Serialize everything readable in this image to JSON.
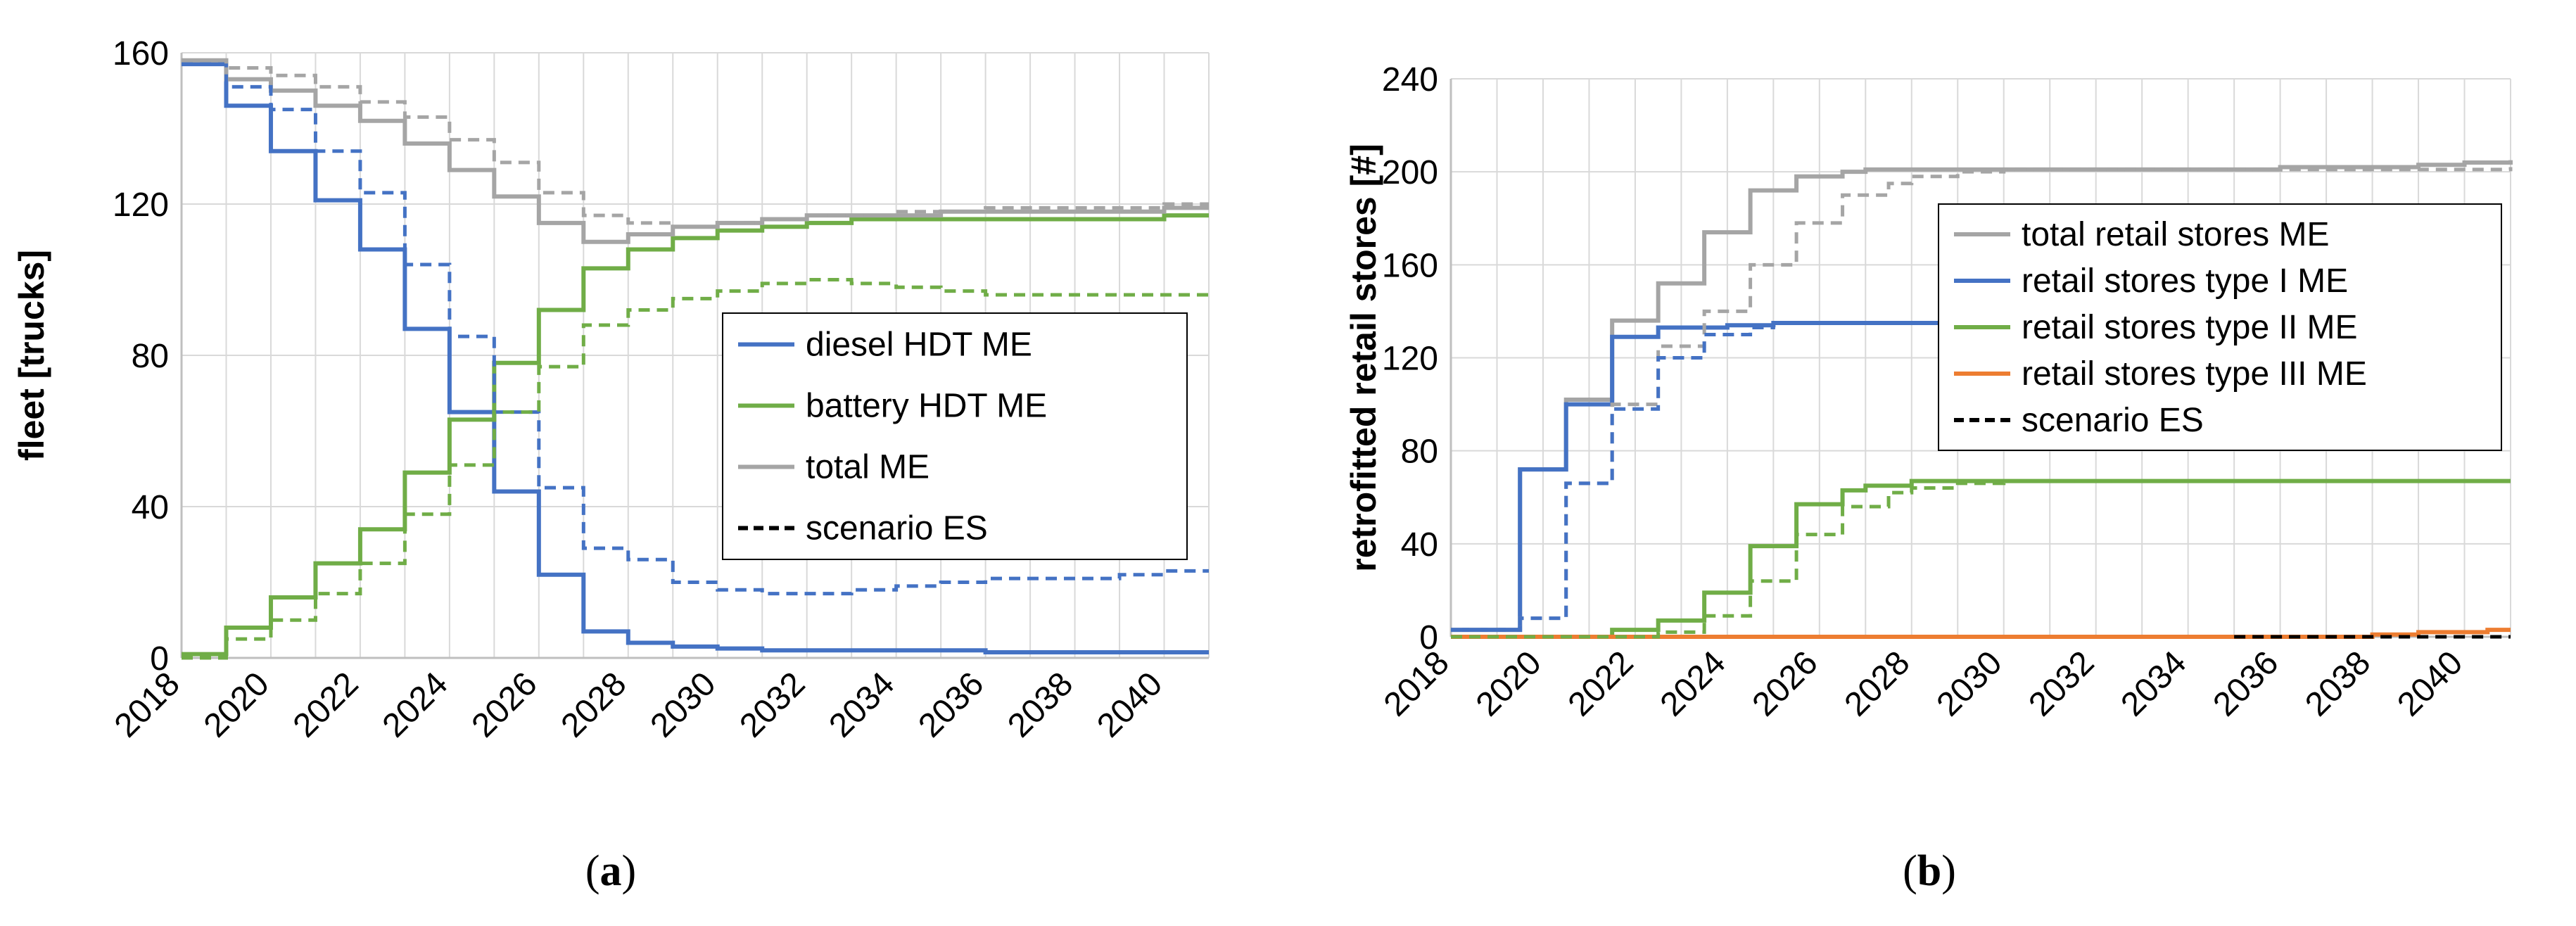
{
  "chart_data": [
    {
      "type": "line",
      "step": true,
      "caption": "a",
      "ylabel": "fleet [trucks]",
      "xlabel": "",
      "xlim": [
        2018,
        2041
      ],
      "ylim": [
        0,
        160
      ],
      "yticks": [
        0,
        40,
        80,
        120,
        160
      ],
      "xticks": [
        2018,
        2020,
        2022,
        2024,
        2026,
        2028,
        2030,
        2032,
        2034,
        2036,
        2038,
        2040
      ],
      "grid": true,
      "legend_position": "center-right",
      "legend": [
        {
          "label": "diesel HDT ME",
          "color": "#4472C4",
          "dash": false
        },
        {
          "label": "battery HDT ME",
          "color": "#70AD47",
          "dash": false
        },
        {
          "label": "total ME",
          "color": "#A5A5A5",
          "dash": false
        },
        {
          "label": "scenario ES",
          "color": "#000000",
          "dash": true
        }
      ],
      "series": [
        {
          "key": "diesel_me",
          "color": "#4472C4",
          "dash": false,
          "x": [
            2018,
            2019,
            2020,
            2021,
            2022,
            2023,
            2024,
            2025,
            2026,
            2027,
            2028,
            2029,
            2030,
            2031,
            2032,
            2033,
            2034,
            2035,
            2036,
            2037,
            2038,
            2039,
            2040,
            2041
          ],
          "y": [
            157,
            146,
            134,
            121,
            108,
            87,
            65,
            44,
            22,
            7,
            4,
            3,
            2.5,
            2,
            2,
            2,
            2,
            2,
            1.5,
            1.5,
            1.5,
            1.5,
            1.5,
            1.5
          ]
        },
        {
          "key": "battery_me",
          "color": "#70AD47",
          "dash": false,
          "x": [
            2018,
            2019,
            2020,
            2021,
            2022,
            2023,
            2024,
            2025,
            2026,
            2027,
            2028,
            2029,
            2030,
            2031,
            2032,
            2033,
            2034,
            2035,
            2036,
            2037,
            2038,
            2039,
            2040,
            2041
          ],
          "y": [
            1,
            8,
            16,
            25,
            34,
            49,
            63,
            78,
            92,
            103,
            108,
            111,
            113,
            114,
            115,
            116,
            116,
            116,
            116,
            116,
            116,
            116,
            117,
            117
          ]
        },
        {
          "key": "total_me",
          "color": "#A5A5A5",
          "dash": false,
          "x": [
            2018,
            2019,
            2020,
            2021,
            2022,
            2023,
            2024,
            2025,
            2026,
            2027,
            2028,
            2029,
            2030,
            2031,
            2032,
            2033,
            2034,
            2035,
            2036,
            2037,
            2038,
            2039,
            2040,
            2041
          ],
          "y": [
            158,
            153,
            150,
            146,
            142,
            136,
            129,
            122,
            115,
            110,
            112,
            114,
            115,
            116,
            117,
            117,
            117,
            118,
            118,
            118,
            118,
            118,
            119,
            119
          ]
        },
        {
          "key": "diesel_es",
          "color": "#4472C4",
          "dash": true,
          "x": [
            2018,
            2019,
            2020,
            2021,
            2022,
            2023,
            2024,
            2025,
            2026,
            2027,
            2028,
            2029,
            2030,
            2031,
            2032,
            2033,
            2034,
            2035,
            2036,
            2037,
            2038,
            2039,
            2040,
            2041
          ],
          "y": [
            157,
            151,
            145,
            134,
            123,
            104,
            85,
            65,
            45,
            29,
            26,
            20,
            18,
            17,
            17,
            18,
            19,
            20,
            21,
            21,
            21,
            22,
            23,
            23
          ]
        },
        {
          "key": "battery_es",
          "color": "#70AD47",
          "dash": true,
          "x": [
            2018,
            2019,
            2020,
            2021,
            2022,
            2023,
            2024,
            2025,
            2026,
            2027,
            2028,
            2029,
            2030,
            2031,
            2032,
            2033,
            2034,
            2035,
            2036,
            2037,
            2038,
            2039,
            2040,
            2041
          ],
          "y": [
            0,
            5,
            10,
            17,
            25,
            38,
            51,
            65,
            77,
            88,
            92,
            95,
            97,
            99,
            100,
            99,
            98,
            97,
            96,
            96,
            96,
            96,
            96,
            96
          ]
        },
        {
          "key": "total_es",
          "color": "#A5A5A5",
          "dash": true,
          "x": [
            2018,
            2019,
            2020,
            2021,
            2022,
            2023,
            2024,
            2025,
            2026,
            2027,
            2028,
            2029,
            2030,
            2031,
            2032,
            2033,
            2034,
            2035,
            2036,
            2037,
            2038,
            2039,
            2040,
            2041
          ],
          "y": [
            158,
            156,
            154,
            151,
            147,
            143,
            137,
            131,
            123,
            117,
            115,
            114,
            115,
            116,
            117,
            117,
            118,
            118,
            119,
            119,
            119,
            119,
            120,
            120
          ]
        }
      ]
    },
    {
      "type": "line",
      "step": true,
      "caption": "b",
      "ylabel": "retrofitted retail stores [#]",
      "xlabel": "",
      "xlim": [
        2018,
        2041
      ],
      "ylim": [
        0,
        240
      ],
      "yticks": [
        0,
        40,
        80,
        120,
        160,
        200,
        240
      ],
      "xticks": [
        2018,
        2020,
        2022,
        2024,
        2026,
        2028,
        2030,
        2032,
        2034,
        2036,
        2038,
        2040
      ],
      "grid": true,
      "legend_position": "top-right",
      "legend": [
        {
          "label": "total retail stores ME",
          "color": "#A5A5A5",
          "dash": false
        },
        {
          "label": "retail stores type I ME",
          "color": "#4472C4",
          "dash": false
        },
        {
          "label": "retail stores type II ME",
          "color": "#70AD47",
          "dash": false
        },
        {
          "label": "retail stores type III ME",
          "color": "#ED7D31",
          "dash": false
        },
        {
          "label": "scenario ES",
          "color": "#000000",
          "dash": true
        }
      ],
      "series": [
        {
          "key": "total_me",
          "color": "#A5A5A5",
          "dash": false,
          "x": [
            2018,
            2019,
            2019.5,
            2020,
            2020.5,
            2021,
            2021.5,
            2022,
            2022.5,
            2023,
            2023.5,
            2024,
            2024.5,
            2025,
            2025.5,
            2026,
            2026.5,
            2027,
            2028,
            2030,
            2032,
            2034,
            2036,
            2038,
            2039,
            2040,
            2041
          ],
          "y": [
            3,
            3,
            72,
            72,
            102,
            102,
            136,
            136,
            152,
            152,
            174,
            174,
            192,
            192,
            198,
            198,
            200,
            201,
            201,
            201,
            201,
            201,
            202,
            202,
            203,
            204,
            205
          ]
        },
        {
          "key": "type1_me",
          "color": "#4472C4",
          "dash": false,
          "x": [
            2018,
            2019,
            2019.5,
            2020,
            2020.5,
            2021,
            2021.5,
            2022,
            2022.5,
            2023,
            2024,
            2025,
            2026,
            2028,
            2030,
            2032,
            2034
          ],
          "y": [
            3,
            3,
            72,
            72,
            100,
            100,
            129,
            129,
            133,
            133,
            134,
            135,
            135,
            135,
            135,
            135,
            135
          ]
        },
        {
          "key": "type2_me",
          "color": "#70AD47",
          "dash": false,
          "x": [
            2018,
            2021,
            2021.5,
            2022,
            2022.5,
            2023,
            2023.5,
            2024,
            2024.5,
            2025,
            2025.5,
            2026,
            2026.5,
            2027,
            2028,
            2030,
            2032,
            2034,
            2036,
            2038,
            2040,
            2041
          ],
          "y": [
            0,
            0,
            3,
            3,
            7,
            7,
            19,
            19,
            39,
            39,
            57,
            57,
            63,
            65,
            67,
            67,
            67,
            67,
            67,
            67,
            67,
            67
          ]
        },
        {
          "key": "type3_me",
          "color": "#ED7D31",
          "dash": false,
          "x": [
            2018,
            2036,
            2037,
            2038,
            2039,
            2040,
            2040.5,
            2041
          ],
          "y": [
            0,
            0,
            0,
            1,
            2,
            2,
            3,
            3
          ]
        },
        {
          "key": "total_es",
          "color": "#A5A5A5",
          "dash": true,
          "x": [
            2018,
            2019,
            2019.5,
            2020,
            2020.5,
            2021,
            2021.5,
            2022,
            2022.5,
            2023,
            2023.5,
            2024,
            2024.5,
            2025,
            2025.5,
            2026,
            2026.5,
            2027,
            2027.5,
            2028,
            2029,
            2030,
            2032,
            2034,
            2036,
            2038,
            2040,
            2041
          ],
          "y": [
            3,
            3,
            8,
            8,
            66,
            66,
            100,
            100,
            125,
            125,
            140,
            140,
            160,
            160,
            178,
            178,
            190,
            190,
            195,
            198,
            200,
            201,
            201,
            201,
            201,
            201,
            201,
            202
          ]
        },
        {
          "key": "type1_es",
          "color": "#4472C4",
          "dash": true,
          "x": [
            2018,
            2019,
            2019.5,
            2020,
            2020.5,
            2021,
            2021.5,
            2022,
            2022.5,
            2023,
            2023.5,
            2024,
            2024.5,
            2025
          ],
          "y": [
            3,
            3,
            8,
            8,
            66,
            66,
            98,
            98,
            120,
            120,
            130,
            130,
            133,
            134
          ]
        },
        {
          "key": "type2_es",
          "color": "#70AD47",
          "dash": true,
          "x": [
            2018,
            2022,
            2022.5,
            2023,
            2023.5,
            2024,
            2024.5,
            2025,
            2025.5,
            2026,
            2026.5,
            2027,
            2027.5,
            2028,
            2029,
            2030,
            2032,
            2034
          ],
          "y": [
            0,
            0,
            2,
            2,
            9,
            9,
            24,
            24,
            44,
            44,
            56,
            56,
            62,
            64,
            66,
            67,
            67,
            67
          ]
        },
        {
          "key": "type3_es",
          "color": "#000000",
          "dash": true,
          "x": [
            2035,
            2036,
            2038,
            2040,
            2041
          ],
          "y": [
            0,
            0,
            0,
            0,
            0
          ]
        }
      ]
    }
  ]
}
